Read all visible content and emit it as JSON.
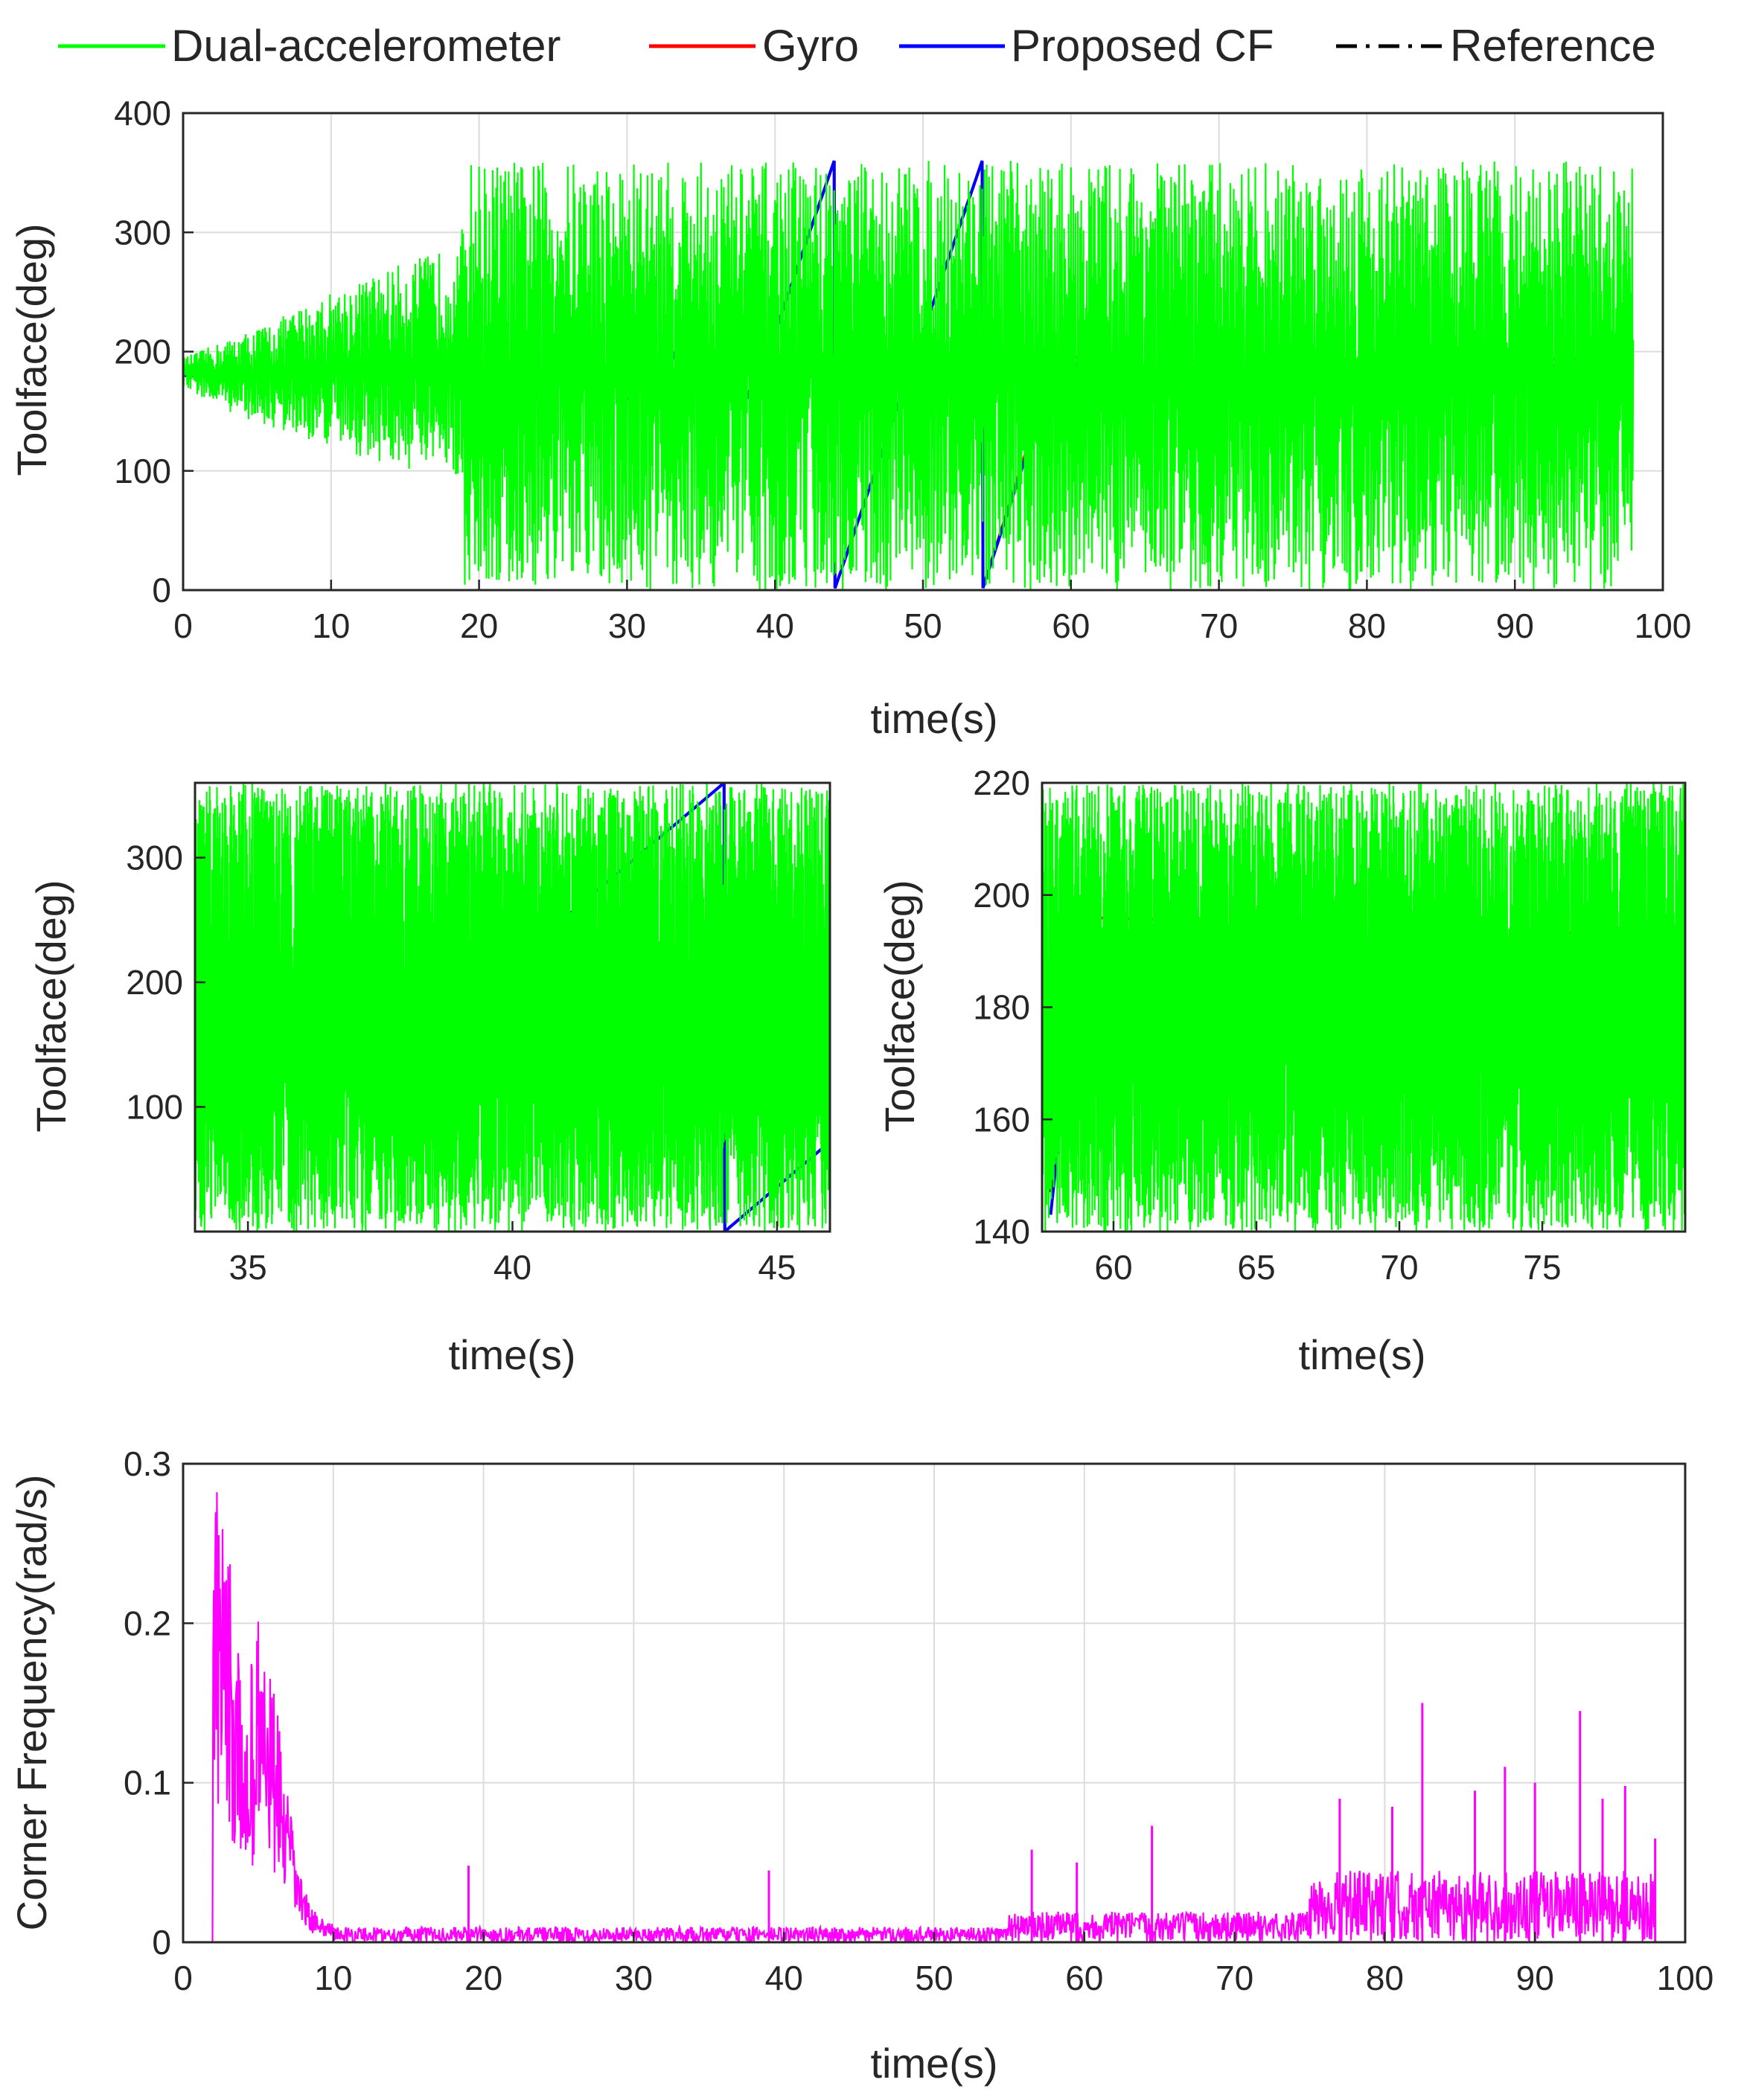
{
  "colors": {
    "dual": "#00ff00",
    "gyro": "#ff0000",
    "cf": "#0000ff",
    "ref": "#000000",
    "corner": "#ff00ff",
    "grid": "#dcdcdc",
    "axis": "#262626"
  },
  "legend": {
    "dual": "Dual-accelerometer",
    "gyro": "Gyro",
    "cf": "Proposed CF",
    "ref": "Reference"
  },
  "chart_data": [
    {
      "id": "main",
      "type": "line",
      "title": "",
      "xlabel": "time(s)",
      "ylabel": "Toolface(deg)",
      "xlim": [
        0,
        100
      ],
      "ylim": [
        0,
        400
      ],
      "xticks": [
        0,
        10,
        20,
        30,
        40,
        50,
        60,
        70,
        80,
        90,
        100
      ],
      "yticks": [
        0,
        100,
        200,
        300,
        400
      ],
      "grid": true,
      "legend_position": "top",
      "series": [
        {
          "name": "Reference",
          "style": "dash-dot",
          "points": [
            [
              0,
              180
            ],
            [
              19,
              180
            ],
            [
              19.5,
              180
            ],
            [
              39,
              180
            ],
            [
              44,
              360
            ],
            [
              44.01,
              0
            ],
            [
              54,
              360
            ],
            [
              54.01,
              0
            ],
            [
              59,
              188
            ],
            [
              63,
              188
            ],
            [
              63.2,
              172
            ],
            [
              67,
              172
            ],
            [
              67.2,
              183
            ],
            [
              71,
              183
            ],
            [
              71.2,
              176
            ],
            [
              75,
              176
            ],
            [
              75.2,
              182
            ],
            [
              98,
              182
            ]
          ]
        },
        {
          "name": "Gyro",
          "points": [
            [
              0,
              180
            ],
            [
              19,
              180
            ],
            [
              39,
              180
            ],
            [
              44,
              360
            ],
            [
              44.01,
              0
            ],
            [
              54,
              360
            ],
            [
              54.01,
              0
            ],
            [
              59,
              196
            ],
            [
              63,
              195
            ],
            [
              63.2,
              180
            ],
            [
              67,
              182
            ],
            [
              67.2,
              192
            ],
            [
              71,
              191
            ],
            [
              71.2,
              186
            ],
            [
              75,
              186
            ],
            [
              75.2,
              193
            ],
            [
              98,
              194
            ]
          ]
        },
        {
          "name": "Proposed CF",
          "points": [
            [
              0,
              180
            ],
            [
              19,
              180
            ],
            [
              39,
              180
            ],
            [
              44,
              360
            ],
            [
              44.01,
              0
            ],
            [
              54,
              360
            ],
            [
              54.01,
              0
            ],
            [
              59,
              190
            ],
            [
              63,
              189
            ],
            [
              63.2,
              175
            ],
            [
              67,
              176
            ],
            [
              67.2,
              187
            ],
            [
              71,
              186
            ],
            [
              71.2,
              180
            ],
            [
              75,
              180
            ],
            [
              75.2,
              187
            ],
            [
              98,
              189
            ]
          ]
        },
        {
          "name": "Dual-accelerometer",
          "envelope": [
            [
              0,
              170,
              195
            ],
            [
              3,
              150,
              210
            ],
            [
              6,
              135,
              225
            ],
            [
              10,
              120,
              250
            ],
            [
              15,
              100,
              275
            ],
            [
              18.8,
              95,
              290
            ],
            [
              19,
              0,
              360
            ],
            [
              40,
              0,
              360
            ],
            [
              75,
              0,
              360
            ],
            [
              98,
              0,
              360
            ]
          ]
        }
      ]
    },
    {
      "id": "zoom1",
      "type": "line",
      "title": "",
      "xlabel": "time(s)",
      "ylabel": "Toolface(deg)",
      "xlim": [
        34,
        46
      ],
      "ylim": [
        0,
        360
      ],
      "xticks": [
        35,
        40,
        45
      ],
      "yticks": [
        100,
        200,
        300
      ],
      "grid": false,
      "series": [
        {
          "name": "Reference",
          "points": [
            [
              34,
              180
            ],
            [
              39,
              180
            ],
            [
              44,
              360
            ],
            [
              44.01,
              0
            ],
            [
              46,
              72
            ]
          ]
        },
        {
          "name": "Gyro",
          "points": [
            [
              34,
              180
            ],
            [
              39,
              180
            ],
            [
              44,
              360
            ],
            [
              44.01,
              0
            ],
            [
              46,
              72
            ]
          ]
        },
        {
          "name": "Proposed CF",
          "points": [
            [
              34,
              180
            ],
            [
              39,
              180
            ],
            [
              44,
              360
            ],
            [
              44.01,
              0
            ],
            [
              46,
              72
            ]
          ]
        },
        {
          "name": "Dual-accelerometer",
          "envelope": [
            [
              34,
              0,
              360
            ],
            [
              46,
              0,
              360
            ]
          ]
        }
      ]
    },
    {
      "id": "zoom2",
      "type": "line",
      "title": "",
      "xlabel": "time(s)",
      "ylabel": "Toolface(deg)",
      "xlim": [
        57.5,
        80
      ],
      "ylim": [
        140,
        220
      ],
      "xticks": [
        60,
        65,
        70,
        75
      ],
      "yticks": [
        140,
        160,
        180,
        200,
        220
      ],
      "grid": false,
      "series": [
        {
          "name": "Gyro",
          "points": [
            [
              57.8,
              150
            ],
            [
              58.8,
              196
            ],
            [
              63,
              195.5
            ],
            [
              63.2,
              180
            ],
            [
              67,
              182.5
            ],
            [
              67.2,
              192.5
            ],
            [
              71,
              192
            ],
            [
              71.2,
              186
            ],
            [
              75,
              186.5
            ],
            [
              75.2,
              193
            ],
            [
              80,
              194.5
            ]
          ]
        },
        {
          "name": "Proposed CF",
          "points": [
            [
              57.8,
              143
            ],
            [
              58.8,
              191
            ],
            [
              63,
              190
            ],
            [
              63.2,
              175
            ],
            [
              67,
              176.5
            ],
            [
              67.2,
              187
            ],
            [
              71,
              186
            ],
            [
              71.2,
              180
            ],
            [
              75,
              180.5
            ],
            [
              75.2,
              187
            ],
            [
              80,
              189
            ]
          ]
        },
        {
          "name": "Reference",
          "points": [
            [
              57.8,
              147
            ],
            [
              58.8,
              189
            ],
            [
              63,
              189
            ],
            [
              63.2,
              173
            ],
            [
              67,
              174
            ],
            [
              67.2,
              184
            ],
            [
              71,
              184
            ],
            [
              71.2,
              177
            ],
            [
              75,
              177
            ],
            [
              75.2,
              184
            ],
            [
              80,
              184
            ]
          ]
        },
        {
          "name": "Dual-accelerometer",
          "envelope": [
            [
              57.5,
              140,
              220
            ],
            [
              80,
              140,
              220
            ]
          ]
        }
      ]
    },
    {
      "id": "corner",
      "type": "line",
      "title": "",
      "xlabel": "time(s)",
      "ylabel": "Corner Frequency(rad/s)",
      "xlim": [
        0,
        100
      ],
      "ylim": [
        0,
        0.3
      ],
      "xticks": [
        0,
        10,
        20,
        30,
        40,
        50,
        60,
        70,
        80,
        90,
        100
      ],
      "yticks": [
        0,
        0.1,
        0.2,
        0.3
      ],
      "grid": true,
      "series": [
        {
          "name": "Corner frequency",
          "peaks": [
            [
              2,
              0.295
            ],
            [
              2.5,
              0.27
            ],
            [
              3,
              0.25
            ],
            [
              3.5,
              0.2
            ],
            [
              4,
              0.15
            ],
            [
              5,
              0.205
            ],
            [
              5.5,
              0.19
            ],
            [
              6,
              0.16
            ],
            [
              6.5,
              0.13
            ],
            [
              7,
              0.09
            ],
            [
              7.5,
              0.06
            ],
            [
              8,
              0.035
            ],
            [
              9,
              0.015
            ],
            [
              19,
              0.048
            ],
            [
              39,
              0.045
            ],
            [
              56.5,
              0.058
            ],
            [
              59.5,
              0.05
            ],
            [
              64.5,
              0.073
            ],
            [
              77,
              0.09
            ],
            [
              80.5,
              0.085
            ],
            [
              82.5,
              0.15
            ],
            [
              86,
              0.095
            ],
            [
              88,
              0.11
            ],
            [
              90,
              0.1
            ],
            [
              93,
              0.145
            ],
            [
              94.5,
              0.09
            ],
            [
              96,
              0.098
            ],
            [
              98,
              0.065
            ]
          ]
        }
      ]
    }
  ]
}
